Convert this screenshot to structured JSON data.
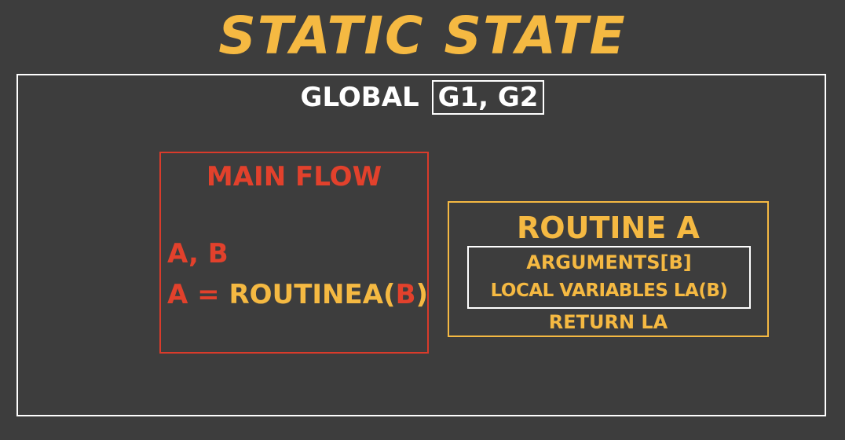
{
  "title": "STATIC STATE",
  "global": {
    "label": "GLOBAL",
    "vars": "G1, G2"
  },
  "main_flow": {
    "title": "MAIN FLOW",
    "declaration": "A, B",
    "assign_lhs": "A",
    "assign_eq": " = ",
    "call_name": "ROUTINEA(",
    "call_arg": "B",
    "call_close": ")"
  },
  "routine": {
    "title": "ROUTINE A",
    "arguments": "ARGUMENTS[B]",
    "locals": "LOCAL VARIABLES LA(B)",
    "return": "RETURN LA"
  },
  "colors": {
    "background": "#3d3d3d",
    "yellow": "#f5b942",
    "red": "#e2412c",
    "white": "#ffffff"
  }
}
